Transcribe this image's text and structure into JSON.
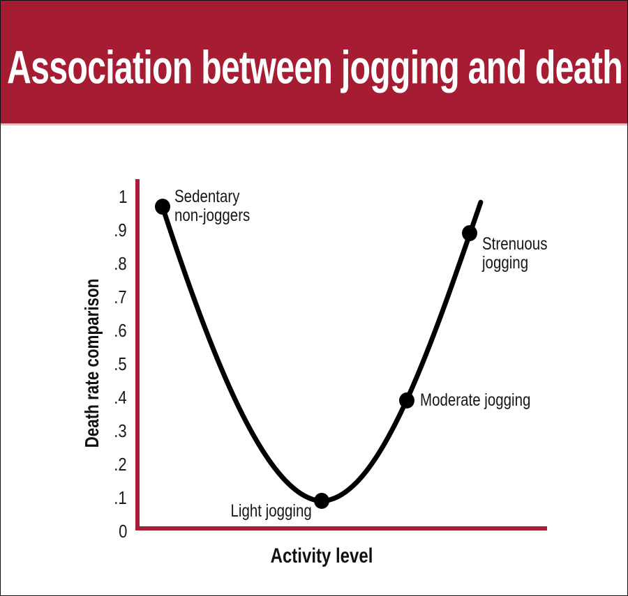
{
  "header": {
    "title": "Association between jogging and death",
    "background_color": "#A61C32",
    "text_color": "#FFFFFF",
    "separator_color": "#D7C5CB"
  },
  "chart_data": {
    "type": "line",
    "title": "Association between jogging and death",
    "xlabel": "Activity level",
    "ylabel": "Death rate comparison",
    "ylim": [
      0,
      1
    ],
    "grid": false,
    "axis_color": "#A81E37",
    "curve_color": "#000000",
    "point_color": "#000000",
    "label_color": "#161616",
    "yticks": [
      {
        "label": "1",
        "value": 1.0
      },
      {
        "label": ".9",
        "value": 0.9
      },
      {
        "label": ".8",
        "value": 0.8
      },
      {
        "label": ".7",
        "value": 0.7
      },
      {
        "label": ".6",
        "value": 0.6
      },
      {
        "label": ".5",
        "value": 0.5
      },
      {
        "label": ".4",
        "value": 0.4
      },
      {
        "label": ".3",
        "value": 0.3
      },
      {
        "label": ".2",
        "value": 0.2
      },
      {
        "label": ".1",
        "value": 0.1
      },
      {
        "label": "0",
        "value": 0.0
      }
    ],
    "points": [
      {
        "id": "sedentary",
        "lines": [
          "Sedentary",
          "non-joggers"
        ],
        "x": 0.061,
        "y": 0.97
      },
      {
        "id": "light",
        "lines": [
          "Light jogging"
        ],
        "x": 0.45,
        "y": 0.09
      },
      {
        "id": "moderate",
        "lines": [
          "Moderate jogging"
        ],
        "x": 0.658,
        "y": 0.39
      },
      {
        "id": "strenuous",
        "lines": [
          "Strenuous",
          "jogging"
        ],
        "x": 0.811,
        "y": 0.89
      }
    ],
    "curve_end": {
      "x": 0.838,
      "y": 0.983
    }
  }
}
